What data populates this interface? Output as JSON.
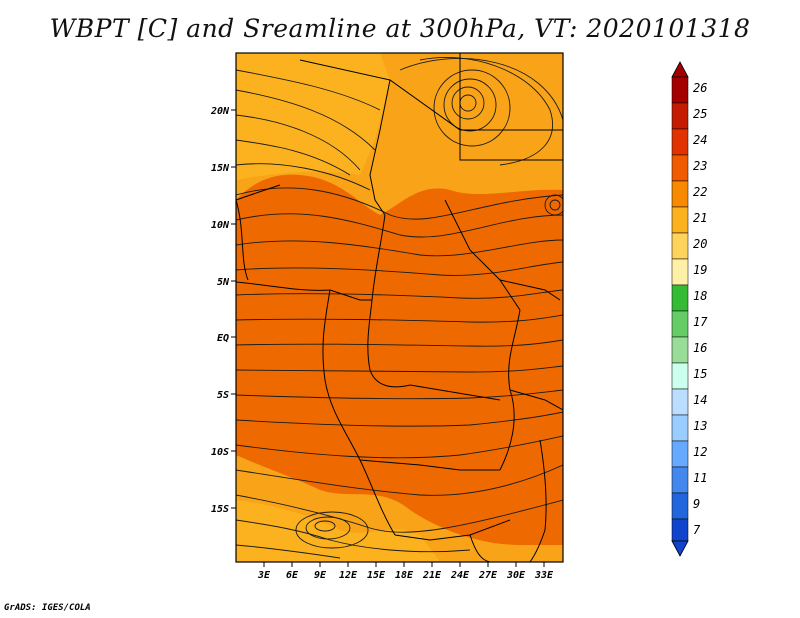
{
  "title": "WBPT [C] and Sreamline at 300hPa, VT: 2020101318",
  "footer": "GrADS: IGES/COLA",
  "lat_labels": [
    "20N",
    "15N",
    "10N",
    "5N",
    "EQ",
    "5S",
    "10S",
    "15S"
  ],
  "lon_labels": [
    "3E",
    "6E",
    "9E",
    "12E",
    "15E",
    "18E",
    "21E",
    "24E",
    "27E",
    "30E",
    "33E"
  ],
  "colorbar": {
    "labels": [
      "26",
      "25",
      "24",
      "23",
      "22",
      "21",
      "20",
      "19",
      "18",
      "17",
      "16",
      "15",
      "14",
      "13",
      "12",
      "11",
      "9",
      "7"
    ],
    "colors": [
      "#a50000",
      "#c41a00",
      "#e03300",
      "#f05a00",
      "#f78a00",
      "#fbb21e",
      "#fdd35c",
      "#fff0a8",
      "#33bb33",
      "#66cc66",
      "#99dd99",
      "#ccffee",
      "#bbddff",
      "#99ccff",
      "#66aaff",
      "#4488ee",
      "#2266dd",
      "#1144cc"
    ]
  },
  "map_colors": {
    "orange_dark": "#ee6a00",
    "orange_mid": "#f78a00",
    "amber": "#f9a418",
    "gold": "#fbb21e"
  }
}
